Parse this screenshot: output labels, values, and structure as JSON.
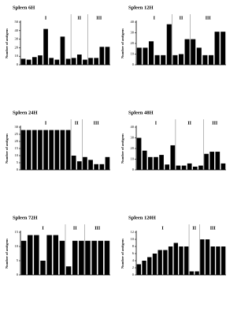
{
  "chart_data": [
    {
      "type": "bar",
      "title": "Spleen 6H",
      "y_label": "Number of antigens",
      "color": "#000000",
      "values": [
        7,
        6,
        9,
        11,
        42,
        8,
        6,
        33,
        7,
        8,
        12,
        6,
        8,
        8,
        21,
        21
      ],
      "ylim": [
        0,
        50
      ],
      "yticks": [
        0,
        10,
        20,
        30,
        40,
        50
      ],
      "sections": [
        {
          "label": "I",
          "start": 0,
          "end": 8
        },
        {
          "label": "II",
          "start": 9,
          "end": 11
        },
        {
          "label": "III",
          "start": 12,
          "end": 15
        }
      ]
    },
    {
      "type": "bar",
      "title": "Spleen 12H",
      "y_label": "Number of antigens",
      "color": "#000000",
      "values": [
        16,
        16,
        22,
        9,
        9,
        38,
        9,
        10,
        24,
        24,
        16,
        9,
        9,
        31,
        31
      ],
      "ylim": [
        0,
        40
      ],
      "yticks": [
        0,
        10,
        20,
        30,
        40
      ],
      "sections": [
        {
          "label": "I",
          "start": 0,
          "end": 5
        },
        {
          "label": "II",
          "start": 6,
          "end": 8
        },
        {
          "label": "III",
          "start": 9,
          "end": 14
        }
      ]
    },
    {
      "type": "bar",
      "title": "Spleen 24H",
      "y_label": "Number of antigens",
      "color": "#000000",
      "values": [
        28,
        28,
        28,
        28,
        28,
        28,
        28,
        28,
        28,
        10,
        6,
        9,
        7,
        4,
        4,
        9
      ],
      "ylim": [
        0,
        30
      ],
      "yticks": [
        0,
        5,
        10,
        15,
        20,
        25,
        30
      ],
      "sections": [
        {
          "label": "I",
          "start": 0,
          "end": 8
        },
        {
          "label": "II",
          "start": 9,
          "end": 10
        },
        {
          "label": "III",
          "start": 11,
          "end": 15
        }
      ]
    },
    {
      "type": "bar",
      "title": "Spleen 48H",
      "y_label": "Number of antigens",
      "color": "#000000",
      "values": [
        30,
        18,
        12,
        12,
        14,
        5,
        23,
        4,
        4,
        6,
        3,
        4,
        15,
        17,
        17,
        6
      ],
      "ylim": [
        0,
        40
      ],
      "yticks": [
        0,
        10,
        20,
        30,
        40
      ],
      "sections": [
        {
          "label": "I",
          "start": 0,
          "end": 6
        },
        {
          "label": "II",
          "start": 7,
          "end": 11
        },
        {
          "label": "III",
          "start": 12,
          "end": 15
        }
      ]
    },
    {
      "type": "bar",
      "title": "Spleen 72H",
      "y_label": "Number of antigens",
      "color": "#000000",
      "values": [
        12,
        14,
        14,
        5,
        14,
        14,
        12,
        3,
        12,
        12,
        12,
        12,
        12,
        12
      ],
      "ylim": [
        0,
        15
      ],
      "yticks": [
        0,
        5,
        10,
        15
      ],
      "sections": [
        {
          "label": "I",
          "start": 0,
          "end": 6
        },
        {
          "label": "II",
          "start": 7,
          "end": 9
        },
        {
          "label": "III",
          "start": 10,
          "end": 13
        }
      ]
    },
    {
      "type": "bar",
      "title": "Spleen 120H",
      "y_label": "Number of antigens",
      "color": "#000000",
      "values": [
        3,
        4,
        5,
        6,
        7,
        7,
        8,
        9,
        8,
        8,
        1,
        1,
        10,
        10,
        8,
        8,
        8
      ],
      "ylim": [
        0,
        12
      ],
      "yticks": [
        0,
        2,
        4,
        6,
        8,
        10,
        12
      ],
      "sections": [
        {
          "label": "I",
          "start": 0,
          "end": 9
        },
        {
          "label": "II",
          "start": 10,
          "end": 11
        },
        {
          "label": "III",
          "start": 12,
          "end": 16
        }
      ]
    }
  ]
}
